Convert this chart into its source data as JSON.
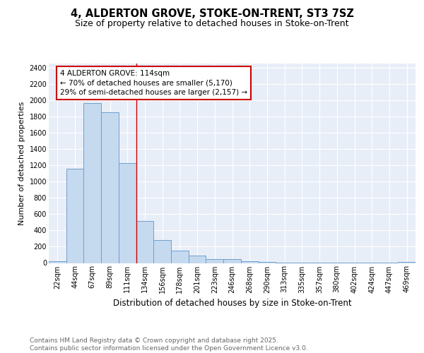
{
  "title_line1": "4, ALDERTON GROVE, STOKE-ON-TRENT, ST3 7SZ",
  "title_line2": "Size of property relative to detached houses in Stoke-on-Trent",
  "xlabel": "Distribution of detached houses by size in Stoke-on-Trent",
  "ylabel": "Number of detached properties",
  "categories": [
    "22sqm",
    "44sqm",
    "67sqm",
    "89sqm",
    "111sqm",
    "134sqm",
    "156sqm",
    "178sqm",
    "201sqm",
    "223sqm",
    "246sqm",
    "268sqm",
    "290sqm",
    "313sqm",
    "335sqm",
    "357sqm",
    "380sqm",
    "402sqm",
    "424sqm",
    "447sqm",
    "469sqm"
  ],
  "values": [
    25,
    1160,
    1960,
    1850,
    1230,
    520,
    280,
    150,
    90,
    45,
    45,
    20,
    15,
    5,
    5,
    3,
    3,
    3,
    3,
    3,
    15
  ],
  "bar_color": "#c5d9ef",
  "bar_edge_color": "#6fa0cc",
  "bar_edge_width": 0.7,
  "annotation_text": "4 ALDERTON GROVE: 114sqm\n← 70% of detached houses are smaller (5,170)\n29% of semi-detached houses are larger (2,157) →",
  "annotation_box_color": "#ffffff",
  "annotation_box_edge_color": "#cc0000",
  "redline_x": 4.5,
  "ylim": [
    0,
    2450
  ],
  "yticks": [
    0,
    200,
    400,
    600,
    800,
    1000,
    1200,
    1400,
    1600,
    1800,
    2000,
    2200,
    2400
  ],
  "background_color": "#e8eef8",
  "grid_color": "#ffffff",
  "footer_text": "Contains HM Land Registry data © Crown copyright and database right 2025.\nContains public sector information licensed under the Open Government Licence v3.0.",
  "title_fontsize": 10.5,
  "subtitle_fontsize": 9,
  "xlabel_fontsize": 8.5,
  "ylabel_fontsize": 8,
  "tick_fontsize": 7,
  "annotation_fontsize": 7.5,
  "footer_fontsize": 6.5
}
